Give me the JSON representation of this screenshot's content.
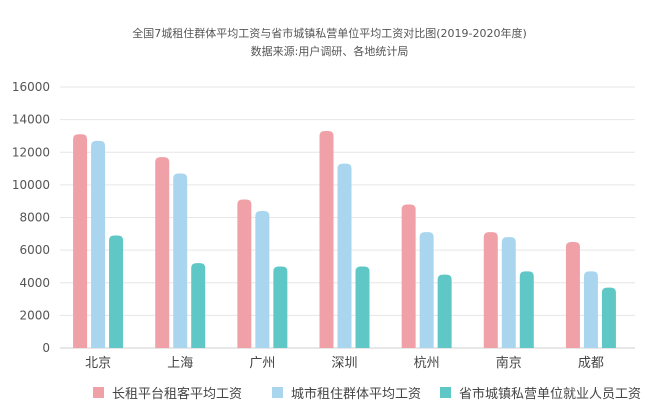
{
  "chart_data": {
    "type": "bar",
    "title": "全国7城租住群体平均工资与省市城镇私营单位平均工资对比图(2019-2020年度)",
    "subtitle": "数据来源:用户调研、各地统计局",
    "categories": [
      "北京",
      "上海",
      "广州",
      "深圳",
      "杭州",
      "南京",
      "成都"
    ],
    "ylim": [
      0,
      16000
    ],
    "yticks": [
      "0",
      "2000",
      "4000",
      "6000",
      "8000",
      "10000",
      "12000",
      "14000",
      "16000"
    ],
    "grid": true,
    "legend_position": "bottom",
    "series": [
      {
        "name": "长租平台租客平均工资",
        "color": "#f0a1a8",
        "values": [
          13100,
          11700,
          9100,
          13300,
          8800,
          7100,
          6500
        ]
      },
      {
        "name": "城市租住群体平均工资",
        "color": "#a9d6ee",
        "values": [
          12700,
          10700,
          8400,
          11300,
          7100,
          6800,
          4700
        ]
      },
      {
        "name": "省市城镇私营单位就业人员工资",
        "color": "#5fc7c6",
        "values": [
          6900,
          5200,
          5000,
          5000,
          4500,
          4700,
          3700
        ]
      }
    ]
  }
}
